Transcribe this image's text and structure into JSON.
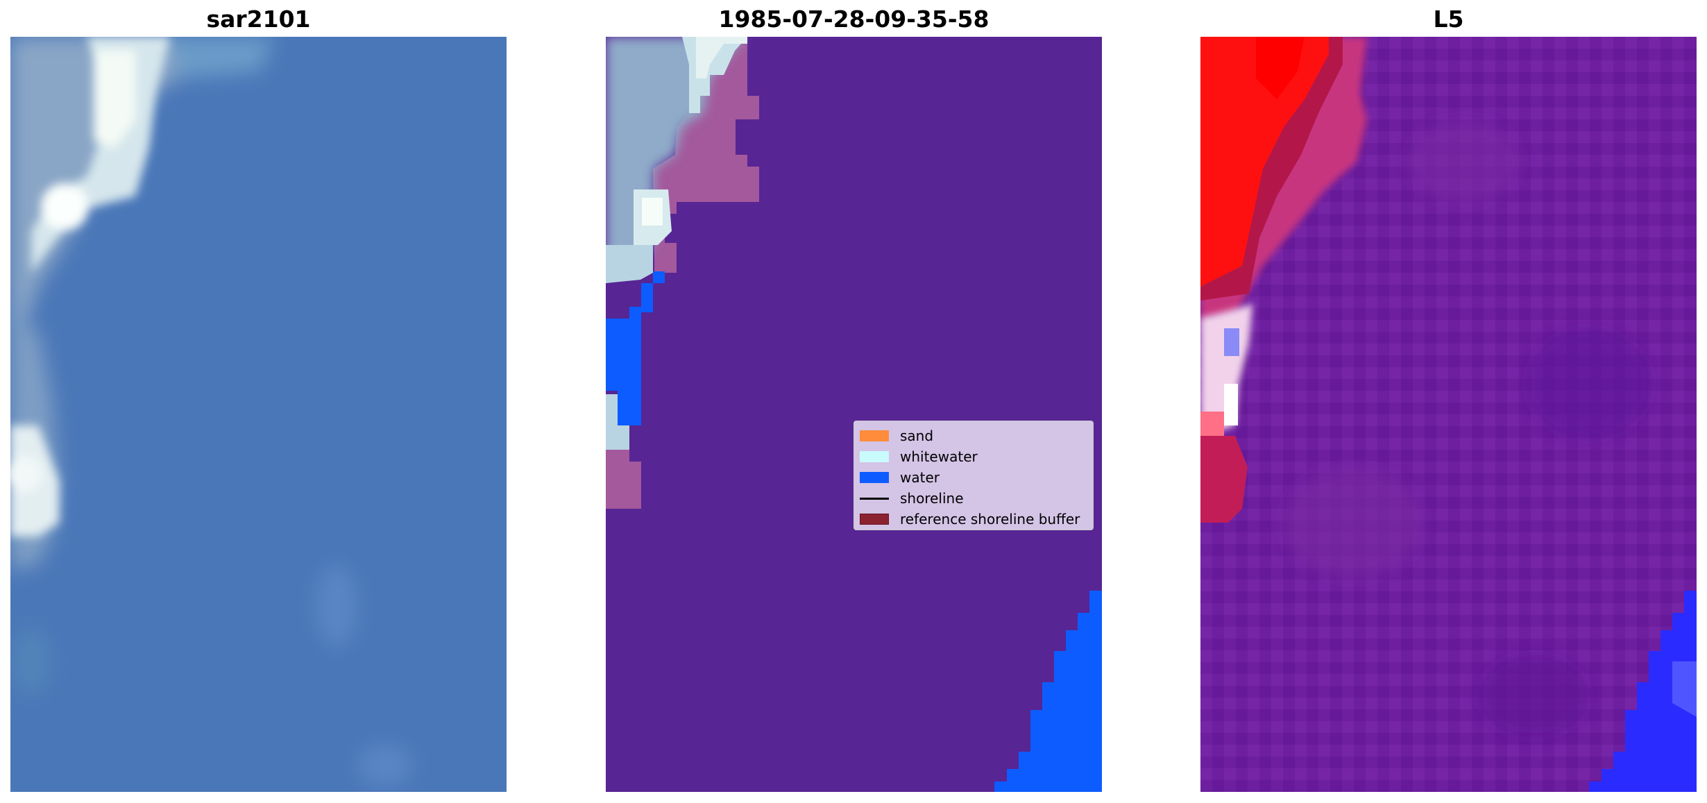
{
  "titles": [
    "sar2101",
    "1985-07-28-09-35-58",
    "L5"
  ],
  "legend": {
    "items": [
      {
        "label": "sand",
        "color": "#ff8c3a",
        "kind": "patch"
      },
      {
        "label": "whitewater",
        "color": "#c9fbfd",
        "kind": "patch"
      },
      {
        "label": "water",
        "color": "#0d5cff",
        "kind": "patch"
      },
      {
        "label": "shoreline",
        "color": "#000000",
        "kind": "line"
      },
      {
        "label": "reference shoreline buffer",
        "color": "#8b2230",
        "kind": "patch"
      }
    ]
  },
  "colors": {
    "sea_blue": "#4a77b8",
    "surf_white": "#e8f4f4",
    "class_purple": "#572594",
    "buffer_mauve": "#9c5a9c",
    "index_red": "#ff1010",
    "index_purple": "#6a1c9e",
    "index_blue": "#2828ff"
  }
}
